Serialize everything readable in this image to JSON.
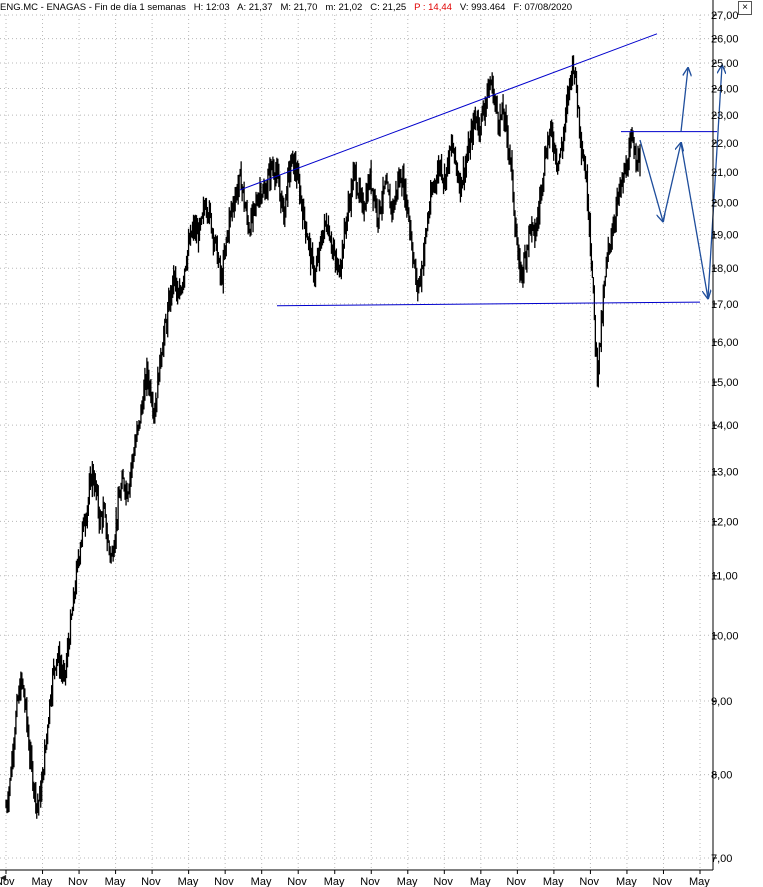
{
  "header": {
    "symbol": "ENG.MC",
    "name": "ENAGAS",
    "period": "Fin de día 1 semanas",
    "h": "H: 12:03",
    "a": "A: 21,37",
    "m": "M: 21,70",
    "min": "m: 21,02",
    "c": "C: 21,25",
    "p": "P : 14,44",
    "v": "V: 993.464",
    "f": "F: 07/08/2020",
    "close_glyph": "×"
  },
  "colors": {
    "price": "#000000",
    "trendline": "#0000cc",
    "projection": "#1f4e9c",
    "grid": "#b8b8b8",
    "highlight": "#e00000"
  },
  "chart_data": {
    "type": "line",
    "title": "ENG.MC - ENAGAS - Fin de día 1 semanas",
    "scale": "log",
    "ylim": [
      7.0,
      27.0
    ],
    "yticks": [
      "27,00",
      "26,00",
      "25,00",
      "24,00",
      "23,00",
      "22,00",
      "21,00",
      "20,00",
      "19,00",
      "18,00",
      "17,00",
      "16,00",
      "15,00",
      "14,00",
      "13,00",
      "12,00",
      "11,00",
      "10,00",
      "9,00",
      "8,00",
      "7,00"
    ],
    "xticks": [
      "Nov",
      "May",
      "Nov",
      "May",
      "Nov",
      "May",
      "Nov",
      "May",
      "Nov",
      "May",
      "Nov",
      "May",
      "Nov",
      "May",
      "Nov",
      "May",
      "Nov",
      "May",
      "Nov",
      "May"
    ],
    "grid": true,
    "series": [
      {
        "style": "weekly-bars",
        "values": [
          7.6,
          7.9,
          8.5,
          9.0,
          9.3,
          8.9,
          8.3,
          7.9,
          7.6,
          7.8,
          8.3,
          8.9,
          9.4,
          9.7,
          9.5,
          9.3,
          9.9,
          10.4,
          11.0,
          11.6,
          12.0,
          12.4,
          13.0,
          12.6,
          12.0,
          12.2,
          11.6,
          11.3,
          11.9,
          12.5,
          12.8,
          12.6,
          13.1,
          13.6,
          14.0,
          14.6,
          15.2,
          14.8,
          14.3,
          15.2,
          16.0,
          16.5,
          17.2,
          17.8,
          17.0,
          17.6,
          18.3,
          18.8,
          19.2,
          19.0,
          19.3,
          20.1,
          19.6,
          19.0,
          18.4,
          17.6,
          18.5,
          19.4,
          20.0,
          20.4,
          20.8,
          19.9,
          19.2,
          19.5,
          20.0,
          20.5,
          20.2,
          20.8,
          21.2,
          21.0,
          20.3,
          19.6,
          20.7,
          21.4,
          21.1,
          20.4,
          19.6,
          19.0,
          18.2,
          17.8,
          18.4,
          19.1,
          19.4,
          18.9,
          18.2,
          17.9,
          18.6,
          19.5,
          20.2,
          21.0,
          20.4,
          19.8,
          20.2,
          20.8,
          20.3,
          19.6,
          20.1,
          20.5,
          20.0,
          19.8,
          20.6,
          20.9,
          20.3,
          19.5,
          18.4,
          17.4,
          17.8,
          18.7,
          19.7,
          20.4,
          20.9,
          21.3,
          20.7,
          21.4,
          21.9,
          21.2,
          20.6,
          21.0,
          21.6,
          22.3,
          23.0,
          22.6,
          23.2,
          23.8,
          24.3,
          23.4,
          22.8,
          23.1,
          22.3,
          21.3,
          19.5,
          18.0,
          17.9,
          18.6,
          19.3,
          18.9,
          19.6,
          20.8,
          21.8,
          22.4,
          22.0,
          21.3,
          21.8,
          22.9,
          24.2,
          25.1,
          23.6,
          22.0,
          21.1,
          19.6,
          17.3,
          15.2,
          16.2,
          17.6,
          18.6,
          19.2,
          19.9,
          20.4,
          20.9,
          21.4,
          22.1,
          21.7,
          21.3
        ]
      }
    ],
    "trendlines": [
      {
        "from": [
          "May-5",
          20.4
        ],
        "to": [
          "Nov-18",
          26.2
        ],
        "desc": "upper"
      },
      {
        "from": [
          "May-6",
          16.95
        ],
        "to": [
          "May-19",
          17.05
        ],
        "desc": "lower"
      },
      {
        "from": [
          "Nov-17",
          22.4
        ],
        "to": [
          "May-19",
          22.4
        ],
        "desc": "horizontal"
      }
    ],
    "projections": [
      {
        "points": [
          [
            22.0
          ],
          [
            19.4
          ],
          [
            22.1
          ],
          [
            17.1
          ],
          [
            25.0
          ]
        ],
        "desc": "zigzag"
      },
      {
        "points": [
          [
            22.1
          ],
          [
            24.9
          ]
        ],
        "desc": "branch"
      }
    ]
  }
}
